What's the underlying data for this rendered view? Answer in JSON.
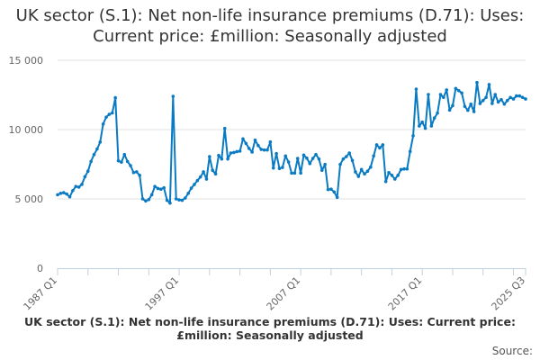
{
  "chart_data": {
    "type": "line",
    "title": "UK sector (S.1): Net non-life insurance premiums (D.71): Uses: Current price: £million: Seasonally adjusted",
    "subtitle_footer": "UK sector (S.1): Net non-life insurance premiums (D.71): Uses: Current price: £million: Seasonally adjusted",
    "source_label": "Source:",
    "x_start": "1987 Q1",
    "x_end": "2025 Q3",
    "frequency": "quarterly",
    "x_tick_labels": [
      "1987 Q1",
      "1997 Q1",
      "2007 Q1",
      "2017 Q1",
      "2025 Q3"
    ],
    "y_tick_labels": [
      "0",
      "5 000",
      "10 000",
      "15 000"
    ],
    "y_ticks": [
      0,
      5000,
      10000,
      15000
    ],
    "ylim": [
      0,
      15000
    ],
    "grid": true,
    "line_color": "#0a7bc2",
    "values": [
      5300,
      5400,
      5450,
      5350,
      5150,
      5600,
      5900,
      5850,
      6050,
      6600,
      7000,
      7700,
      8200,
      8600,
      9100,
      10400,
      10900,
      11100,
      11200,
      12300,
      7750,
      7650,
      8200,
      7700,
      7400,
      6900,
      6950,
      6700,
      5000,
      4850,
      4950,
      5300,
      5900,
      5750,
      5700,
      5800,
      4900,
      4700,
      12400,
      5000,
      4930,
      4900,
      5065,
      5400,
      5780,
      6040,
      6320,
      6580,
      6950,
      6430,
      8050,
      7060,
      6800,
      8140,
      7880,
      10090,
      7880,
      8310,
      8350,
      8410,
      8450,
      9330,
      9000,
      8640,
      8380,
      9240,
      8850,
      8570,
      8530,
      8530,
      9110,
      7230,
      8270,
      7190,
      7270,
      8100,
      7660,
      6860,
      6860,
      7920,
      6860,
      8160,
      7940,
      7550,
      7920,
      8200,
      7880,
      7060,
      7490,
      5670,
      5700,
      5500,
      5110,
      7490,
      7880,
      8050,
      8310,
      7770,
      6950,
      6620,
      7120,
      6800,
      7000,
      7290,
      8100,
      8900,
      8680,
      8900,
      6250,
      6900,
      6700,
      6430,
      6700,
      7120,
      7160,
      7160,
      8420,
      9550,
      12920,
      10260,
      10540,
      10090,
      12530,
      10260,
      10840,
      11190,
      12530,
      12320,
      12860,
      11410,
      11730,
      12970,
      12810,
      12640,
      11670,
      11390,
      11840,
      11300,
      13400,
      11880,
      12100,
      12320,
      13250,
      11880,
      12530,
      11990,
      12160,
      11840,
      12100,
      12320,
      12210,
      12430,
      12430,
      12320,
      12210
    ]
  }
}
